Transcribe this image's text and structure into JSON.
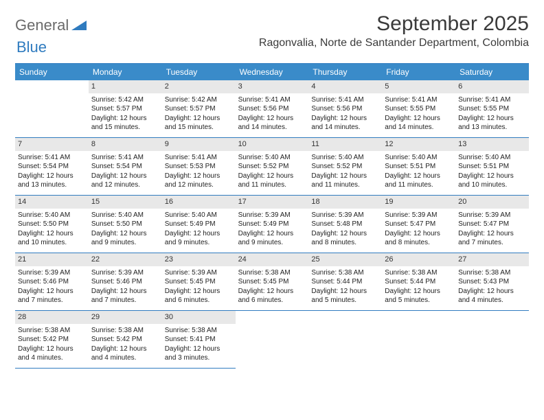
{
  "logo": {
    "part1": "General",
    "part2": "Blue"
  },
  "title": "September 2025",
  "location": "Ragonvalia, Norte de Santander Department, Colombia",
  "colors": {
    "header_bg": "#3a8bc9",
    "border": "#2f7bbf",
    "daynum_bg": "#e8e8e8",
    "logo_gray": "#6a6a6a",
    "logo_blue": "#2f7bbf"
  },
  "weekdays": [
    "Sunday",
    "Monday",
    "Tuesday",
    "Wednesday",
    "Thursday",
    "Friday",
    "Saturday"
  ],
  "start_offset": 1,
  "days": [
    {
      "n": 1,
      "sr": "5:42 AM",
      "ss": "5:57 PM",
      "dl": "12 hours and 15 minutes."
    },
    {
      "n": 2,
      "sr": "5:42 AM",
      "ss": "5:57 PM",
      "dl": "12 hours and 15 minutes."
    },
    {
      "n": 3,
      "sr": "5:41 AM",
      "ss": "5:56 PM",
      "dl": "12 hours and 14 minutes."
    },
    {
      "n": 4,
      "sr": "5:41 AM",
      "ss": "5:56 PM",
      "dl": "12 hours and 14 minutes."
    },
    {
      "n": 5,
      "sr": "5:41 AM",
      "ss": "5:55 PM",
      "dl": "12 hours and 14 minutes."
    },
    {
      "n": 6,
      "sr": "5:41 AM",
      "ss": "5:55 PM",
      "dl": "12 hours and 13 minutes."
    },
    {
      "n": 7,
      "sr": "5:41 AM",
      "ss": "5:54 PM",
      "dl": "12 hours and 13 minutes."
    },
    {
      "n": 8,
      "sr": "5:41 AM",
      "ss": "5:54 PM",
      "dl": "12 hours and 12 minutes."
    },
    {
      "n": 9,
      "sr": "5:41 AM",
      "ss": "5:53 PM",
      "dl": "12 hours and 12 minutes."
    },
    {
      "n": 10,
      "sr": "5:40 AM",
      "ss": "5:52 PM",
      "dl": "12 hours and 11 minutes."
    },
    {
      "n": 11,
      "sr": "5:40 AM",
      "ss": "5:52 PM",
      "dl": "12 hours and 11 minutes."
    },
    {
      "n": 12,
      "sr": "5:40 AM",
      "ss": "5:51 PM",
      "dl": "12 hours and 11 minutes."
    },
    {
      "n": 13,
      "sr": "5:40 AM",
      "ss": "5:51 PM",
      "dl": "12 hours and 10 minutes."
    },
    {
      "n": 14,
      "sr": "5:40 AM",
      "ss": "5:50 PM",
      "dl": "12 hours and 10 minutes."
    },
    {
      "n": 15,
      "sr": "5:40 AM",
      "ss": "5:50 PM",
      "dl": "12 hours and 9 minutes."
    },
    {
      "n": 16,
      "sr": "5:40 AM",
      "ss": "5:49 PM",
      "dl": "12 hours and 9 minutes."
    },
    {
      "n": 17,
      "sr": "5:39 AM",
      "ss": "5:49 PM",
      "dl": "12 hours and 9 minutes."
    },
    {
      "n": 18,
      "sr": "5:39 AM",
      "ss": "5:48 PM",
      "dl": "12 hours and 8 minutes."
    },
    {
      "n": 19,
      "sr": "5:39 AM",
      "ss": "5:47 PM",
      "dl": "12 hours and 8 minutes."
    },
    {
      "n": 20,
      "sr": "5:39 AM",
      "ss": "5:47 PM",
      "dl": "12 hours and 7 minutes."
    },
    {
      "n": 21,
      "sr": "5:39 AM",
      "ss": "5:46 PM",
      "dl": "12 hours and 7 minutes."
    },
    {
      "n": 22,
      "sr": "5:39 AM",
      "ss": "5:46 PM",
      "dl": "12 hours and 7 minutes."
    },
    {
      "n": 23,
      "sr": "5:39 AM",
      "ss": "5:45 PM",
      "dl": "12 hours and 6 minutes."
    },
    {
      "n": 24,
      "sr": "5:38 AM",
      "ss": "5:45 PM",
      "dl": "12 hours and 6 minutes."
    },
    {
      "n": 25,
      "sr": "5:38 AM",
      "ss": "5:44 PM",
      "dl": "12 hours and 5 minutes."
    },
    {
      "n": 26,
      "sr": "5:38 AM",
      "ss": "5:44 PM",
      "dl": "12 hours and 5 minutes."
    },
    {
      "n": 27,
      "sr": "5:38 AM",
      "ss": "5:43 PM",
      "dl": "12 hours and 4 minutes."
    },
    {
      "n": 28,
      "sr": "5:38 AM",
      "ss": "5:42 PM",
      "dl": "12 hours and 4 minutes."
    },
    {
      "n": 29,
      "sr": "5:38 AM",
      "ss": "5:42 PM",
      "dl": "12 hours and 4 minutes."
    },
    {
      "n": 30,
      "sr": "5:38 AM",
      "ss": "5:41 PM",
      "dl": "12 hours and 3 minutes."
    }
  ],
  "labels": {
    "sunrise": "Sunrise:",
    "sunset": "Sunset:",
    "daylight": "Daylight:"
  }
}
